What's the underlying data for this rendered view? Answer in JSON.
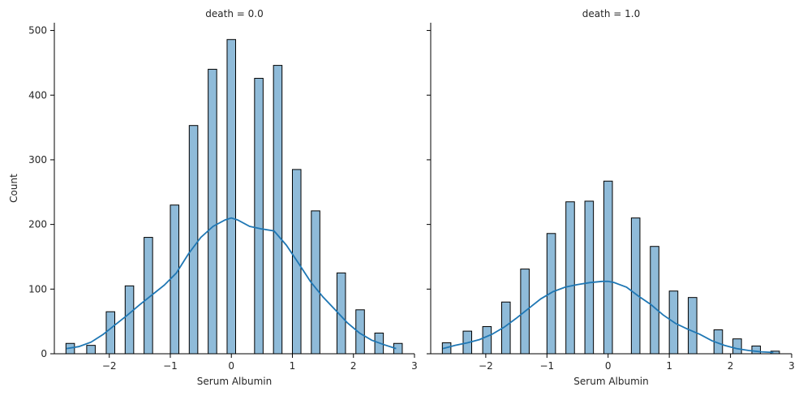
{
  "chart_data": [
    {
      "type": "bar",
      "title": "death = 0.0",
      "xlabel": "Serum Albumin",
      "ylabel": "Count",
      "xlim": [
        -2.9,
        3.0
      ],
      "ylim": [
        0,
        512
      ],
      "xticks": [
        -2,
        -1,
        0,
        1,
        2,
        3
      ],
      "yticks": [
        0,
        100,
        200,
        300,
        400,
        500
      ],
      "bin_width": 0.14,
      "bins": [
        {
          "x": -2.64,
          "count": 16
        },
        {
          "x": -2.3,
          "count": 13
        },
        {
          "x": -1.98,
          "count": 65
        },
        {
          "x": -1.67,
          "count": 105
        },
        {
          "x": -1.36,
          "count": 180
        },
        {
          "x": -0.93,
          "count": 230
        },
        {
          "x": -0.62,
          "count": 353
        },
        {
          "x": -0.31,
          "count": 440
        },
        {
          "x": 0.0,
          "count": 486
        },
        {
          "x": 0.45,
          "count": 426
        },
        {
          "x": 0.76,
          "count": 446
        },
        {
          "x": 1.07,
          "count": 285
        },
        {
          "x": 1.38,
          "count": 221
        },
        {
          "x": 1.8,
          "count": 125
        },
        {
          "x": 2.11,
          "count": 68
        },
        {
          "x": 2.42,
          "count": 32
        },
        {
          "x": 2.73,
          "count": 16
        }
      ],
      "kde": {
        "x": [
          -2.7,
          -2.5,
          -2.3,
          -2.1,
          -1.9,
          -1.7,
          -1.5,
          -1.3,
          -1.1,
          -0.9,
          -0.7,
          -0.5,
          -0.3,
          -0.1,
          0.0,
          0.1,
          0.3,
          0.5,
          0.7,
          0.9,
          1.1,
          1.3,
          1.5,
          1.7,
          1.9,
          2.1,
          2.3,
          2.5,
          2.7
        ],
        "y": [
          8,
          11,
          18,
          30,
          45,
          60,
          76,
          91,
          106,
          125,
          155,
          180,
          197,
          207,
          210,
          207,
          197,
          193,
          190,
          168,
          140,
          111,
          88,
          68,
          48,
          32,
          21,
          14,
          8
        ]
      }
    },
    {
      "type": "bar",
      "title": "death = 1.0",
      "xlabel": "Serum Albumin",
      "ylabel": "",
      "xlim": [
        -2.9,
        3.0
      ],
      "ylim": [
        0,
        512
      ],
      "xticks": [
        -2,
        -1,
        0,
        1,
        2,
        3
      ],
      "yticks": [
        0,
        100,
        200,
        300,
        400,
        500
      ],
      "bin_width": 0.14,
      "bins": [
        {
          "x": -2.64,
          "count": 17
        },
        {
          "x": -2.3,
          "count": 35
        },
        {
          "x": -1.98,
          "count": 42
        },
        {
          "x": -1.67,
          "count": 80
        },
        {
          "x": -1.36,
          "count": 131
        },
        {
          "x": -0.93,
          "count": 186
        },
        {
          "x": -0.62,
          "count": 235
        },
        {
          "x": -0.31,
          "count": 236
        },
        {
          "x": 0.0,
          "count": 267
        },
        {
          "x": 0.45,
          "count": 210
        },
        {
          "x": 0.76,
          "count": 166
        },
        {
          "x": 1.07,
          "count": 97
        },
        {
          "x": 1.38,
          "count": 87
        },
        {
          "x": 1.8,
          "count": 37
        },
        {
          "x": 2.11,
          "count": 23
        },
        {
          "x": 2.42,
          "count": 12
        },
        {
          "x": 2.73,
          "count": 4
        }
      ],
      "kde": {
        "x": [
          -2.7,
          -2.5,
          -2.3,
          -2.1,
          -1.9,
          -1.7,
          -1.5,
          -1.3,
          -1.1,
          -0.9,
          -0.7,
          -0.5,
          -0.3,
          -0.1,
          0.0,
          0.1,
          0.3,
          0.5,
          0.7,
          0.9,
          1.1,
          1.3,
          1.5,
          1.7,
          1.9,
          2.1,
          2.3,
          2.5,
          2.7
        ],
        "y": [
          8,
          13,
          17,
          22,
          30,
          41,
          55,
          70,
          85,
          96,
          103,
          107,
          110,
          112,
          112,
          110,
          103,
          89,
          76,
          60,
          47,
          38,
          30,
          20,
          13,
          8,
          5,
          3,
          2
        ]
      }
    }
  ]
}
